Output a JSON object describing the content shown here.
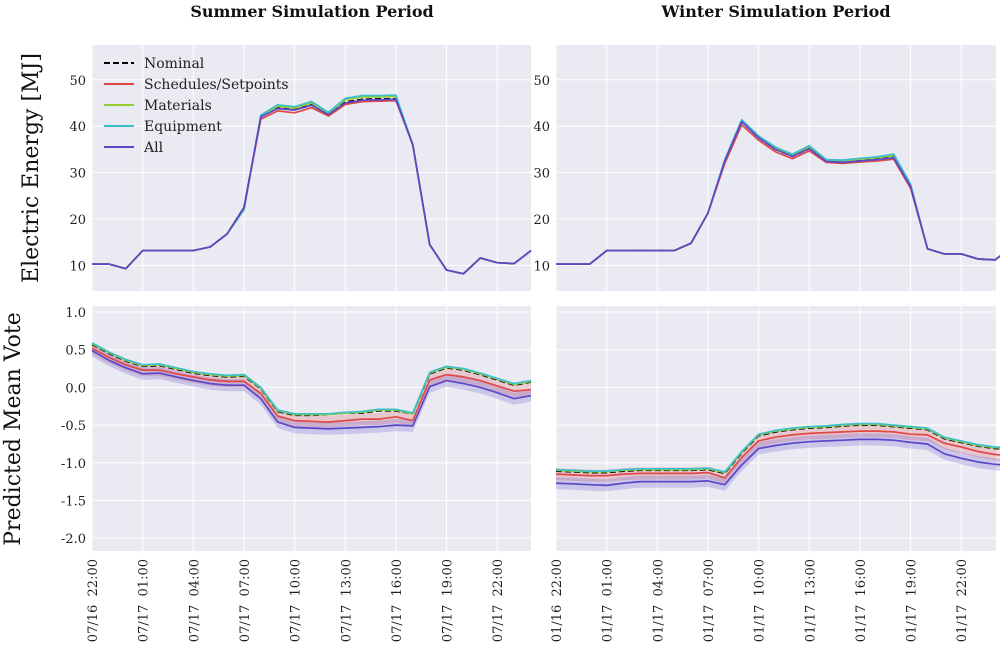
{
  "titles": [
    "Summer Simulation Period",
    "Winter Simulation Period"
  ],
  "ylabels": [
    "Electric Energy [MJ]",
    "Predicted Mean Vote"
  ],
  "legend": [
    {
      "name": "Nominal",
      "color": "#000000",
      "dash": true
    },
    {
      "name": "Schedules/Setpoints",
      "color": "#e04848",
      "dash": false
    },
    {
      "name": "Materials",
      "color": "#9acd32",
      "dash": false
    },
    {
      "name": "Equipment",
      "color": "#3bbfcc",
      "dash": false
    },
    {
      "name": "All",
      "color": "#5a48c8",
      "dash": false
    }
  ],
  "chart_data": [
    {
      "type": "line",
      "panel": "summer-energy",
      "title": "Summer Simulation Period",
      "ylabel": "Electric Energy [MJ]",
      "ylim": [
        4.5,
        57.5
      ],
      "yticks": [
        10,
        20,
        30,
        40,
        50
      ],
      "x": [
        0,
        1,
        2,
        3,
        4,
        5,
        6,
        7,
        8,
        9,
        10,
        11,
        12,
        13,
        14,
        15,
        16,
        17,
        18,
        19,
        20,
        21,
        22,
        23,
        24,
        25,
        26
      ],
      "series": [
        {
          "name": "Nominal",
          "values": [
            10.3,
            10.3,
            9.3,
            13.2,
            13.2,
            13.2,
            13.2,
            14.0,
            16.8,
            22.5,
            42.0,
            44.0,
            43.6,
            44.7,
            42.6,
            45.2,
            45.8,
            45.9,
            45.9,
            36,
            14.5,
            9.0,
            8.2,
            11.6,
            10.6,
            10.4,
            13.2
          ]
        },
        {
          "name": "Schedules/Setpoints",
          "values": [
            10.3,
            10.3,
            9.3,
            13.2,
            13.2,
            13.2,
            13.2,
            14.0,
            16.8,
            22.5,
            41.5,
            43.3,
            42.9,
            44.0,
            42.2,
            44.7,
            45.3,
            45.4,
            45.5,
            36,
            14.5,
            9.0,
            8.2,
            11.6,
            10.6,
            10.4,
            13.2
          ]
        },
        {
          "name": "Materials",
          "values": [
            10.3,
            10.3,
            9.3,
            13.2,
            13.2,
            13.2,
            13.2,
            14.0,
            16.8,
            22.0,
            42.2,
            44.3,
            43.9,
            45.0,
            42.8,
            45.7,
            46.3,
            46.3,
            46.4,
            36,
            14.5,
            9.0,
            8.2,
            11.6,
            10.6,
            10.4,
            13.2
          ]
        },
        {
          "name": "Equipment",
          "values": [
            10.3,
            10.3,
            9.3,
            13.2,
            13.2,
            13.2,
            13.2,
            14.0,
            16.8,
            22.0,
            42.4,
            44.6,
            44.2,
            45.3,
            43.0,
            46.0,
            46.6,
            46.6,
            46.7,
            36,
            14.5,
            9.0,
            8.2,
            11.6,
            10.6,
            10.4,
            13.2
          ]
        },
        {
          "name": "All",
          "values": [
            10.3,
            10.3,
            9.3,
            13.2,
            13.2,
            13.2,
            13.2,
            14.0,
            16.8,
            22.5,
            42.0,
            43.8,
            43.5,
            44.5,
            42.5,
            45.0,
            45.6,
            45.7,
            45.8,
            36,
            14.5,
            9.0,
            8.2,
            11.6,
            10.6,
            10.4,
            13.2
          ]
        }
      ]
    },
    {
      "type": "line",
      "panel": "winter-energy",
      "title": "Winter Simulation Period",
      "ylim": [
        4.5,
        57.5
      ],
      "yticks": [
        10,
        20,
        30,
        40,
        50
      ],
      "x": [
        0,
        1,
        2,
        3,
        4,
        5,
        6,
        7,
        8,
        9,
        10,
        11,
        12,
        13,
        14,
        15,
        16,
        17,
        18,
        19,
        20,
        21,
        22,
        23,
        24,
        25,
        26,
        27,
        28,
        29
      ],
      "series": [
        {
          "name": "Nominal",
          "values": [
            10.3,
            10.3,
            10.3,
            13.2,
            13.2,
            13.2,
            13.2,
            13.2,
            14.8,
            21.3,
            32.5,
            41.0,
            37.5,
            35.0,
            33.5,
            35.2,
            32.5,
            32.3,
            32.6,
            32.9,
            33.3,
            27.0,
            13.6,
            12.5,
            12.5,
            11.4,
            11.2,
            14.0,
            14.0,
            14.0
          ]
        },
        {
          "name": "Schedules/Setpoints",
          "values": [
            10.3,
            10.3,
            10.3,
            13.2,
            13.2,
            13.2,
            13.2,
            13.2,
            14.8,
            21.3,
            32.0,
            40.3,
            37.0,
            34.5,
            33.0,
            34.7,
            32.2,
            32.0,
            32.3,
            32.5,
            32.9,
            26.6,
            13.6,
            12.5,
            12.5,
            11.4,
            11.2,
            14.0,
            14.0,
            14.0
          ]
        },
        {
          "name": "Materials",
          "values": [
            10.3,
            10.3,
            10.3,
            13.2,
            13.2,
            13.2,
            13.2,
            13.2,
            14.8,
            21.3,
            32.7,
            41.2,
            37.7,
            35.3,
            33.8,
            35.5,
            32.7,
            32.5,
            32.9,
            33.2,
            33.7,
            27.3,
            13.6,
            12.5,
            12.5,
            11.4,
            11.2,
            14.0,
            14.0,
            14.0
          ]
        },
        {
          "name": "Equipment",
          "values": [
            10.3,
            10.3,
            10.3,
            13.2,
            13.2,
            13.2,
            13.2,
            13.2,
            14.8,
            21.3,
            32.8,
            41.4,
            37.9,
            35.5,
            34.0,
            35.8,
            32.8,
            32.7,
            33.1,
            33.4,
            34.0,
            27.5,
            13.6,
            12.5,
            12.5,
            11.4,
            11.2,
            14.0,
            14.0,
            14.0
          ]
        },
        {
          "name": "All",
          "values": [
            10.3,
            10.3,
            10.3,
            13.2,
            13.2,
            13.2,
            13.2,
            13.2,
            14.8,
            21.3,
            32.5,
            41.0,
            37.5,
            35.0,
            33.5,
            35.2,
            32.4,
            32.2,
            32.5,
            32.8,
            33.2,
            27.0,
            13.6,
            12.5,
            12.5,
            11.4,
            11.2,
            14.0,
            14.0,
            14.0
          ]
        }
      ]
    },
    {
      "type": "line",
      "panel": "summer-pmv",
      "ylabel": "Predicted Mean Vote",
      "ylim": [
        -2.17,
        1.08
      ],
      "yticks": [
        1.0,
        0.5,
        0.0,
        -0.5,
        -1.0,
        -1.5,
        -2.0
      ],
      "xticks": [
        "07/16  22:00",
        "07/17  01:00",
        "07/17  04:00",
        "07/17  07:00",
        "07/17  10:00",
        "07/17  13:00",
        "07/17  16:00",
        "07/17  19:00",
        "07/17  22:00"
      ],
      "xtick_positions": [
        0,
        3,
        6,
        9,
        12,
        15,
        18,
        21,
        24
      ],
      "x": [
        0,
        1,
        2,
        3,
        4,
        5,
        6,
        7,
        8,
        9,
        10,
        11,
        12,
        13,
        14,
        15,
        16,
        17,
        18,
        19,
        20,
        21,
        22,
        23,
        24,
        25,
        26
      ],
      "series": [
        {
          "name": "Nominal",
          "values": [
            0.57,
            0.45,
            0.35,
            0.28,
            0.29,
            0.24,
            0.19,
            0.16,
            0.14,
            0.15,
            -0.02,
            -0.32,
            -0.37,
            -0.37,
            -0.36,
            -0.34,
            -0.34,
            -0.31,
            -0.31,
            -0.35,
            0.18,
            0.26,
            0.23,
            0.17,
            0.1,
            0.03,
            0.07
          ]
        },
        {
          "name": "Schedules/Setpoints",
          "values": [
            0.52,
            0.4,
            0.3,
            0.23,
            0.23,
            0.18,
            0.14,
            0.1,
            0.08,
            0.08,
            -0.08,
            -0.38,
            -0.44,
            -0.45,
            -0.46,
            -0.44,
            -0.42,
            -0.42,
            -0.39,
            -0.44,
            0.1,
            0.17,
            0.14,
            0.09,
            0.02,
            -0.05,
            -0.03
          ]
        },
        {
          "name": "Materials",
          "values": [
            0.58,
            0.46,
            0.36,
            0.29,
            0.3,
            0.25,
            0.2,
            0.17,
            0.15,
            0.16,
            -0.01,
            -0.31,
            -0.36,
            -0.36,
            -0.36,
            -0.34,
            -0.33,
            -0.3,
            -0.3,
            -0.35,
            0.19,
            0.27,
            0.24,
            0.18,
            0.11,
            0.04,
            0.08
          ]
        },
        {
          "name": "Equipment",
          "values": [
            0.59,
            0.47,
            0.37,
            0.3,
            0.31,
            0.26,
            0.21,
            0.18,
            0.16,
            0.17,
            0.0,
            -0.3,
            -0.35,
            -0.35,
            -0.35,
            -0.33,
            -0.32,
            -0.29,
            -0.29,
            -0.34,
            0.2,
            0.28,
            0.25,
            0.19,
            0.12,
            0.05,
            0.09
          ]
        },
        {
          "name": "All",
          "values": [
            0.49,
            0.36,
            0.26,
            0.18,
            0.19,
            0.14,
            0.09,
            0.05,
            0.03,
            0.03,
            -0.15,
            -0.46,
            -0.53,
            -0.54,
            -0.55,
            -0.54,
            -0.53,
            -0.52,
            -0.5,
            -0.51,
            0.01,
            0.09,
            0.05,
            0.0,
            -0.07,
            -0.15,
            -0.11
          ]
        }
      ]
    },
    {
      "type": "line",
      "panel": "winter-pmv",
      "ylim": [
        -2.17,
        1.08
      ],
      "xticks": [
        "01/16  22:00",
        "01/17  01:00",
        "01/17  04:00",
        "01/17  07:00",
        "01/17  10:00",
        "01/17  13:00",
        "01/17  16:00",
        "01/17  19:00",
        "01/17  22:00"
      ],
      "xtick_positions": [
        0,
        3,
        6,
        9,
        12,
        15,
        18,
        21,
        24
      ],
      "x": [
        0,
        1,
        2,
        3,
        4,
        5,
        6,
        7,
        8,
        9,
        10,
        11,
        12,
        13,
        14,
        15,
        16,
        17,
        18,
        19,
        20,
        21,
        22,
        23,
        24,
        25,
        26,
        27,
        28,
        29
      ],
      "series": [
        {
          "name": "Nominal",
          "values": [
            -1.11,
            -1.12,
            -1.13,
            -1.13,
            -1.11,
            -1.1,
            -1.1,
            -1.1,
            -1.1,
            -1.09,
            -1.14,
            -0.87,
            -0.64,
            -0.59,
            -0.56,
            -0.54,
            -0.53,
            -0.51,
            -0.5,
            -0.5,
            -0.52,
            -0.54,
            -0.56,
            -0.68,
            -0.73,
            -0.78,
            -0.81,
            -0.82,
            -0.86,
            -0.9
          ]
        },
        {
          "name": "Schedules/Setpoints",
          "values": [
            -1.15,
            -1.16,
            -1.17,
            -1.17,
            -1.15,
            -1.14,
            -1.14,
            -1.14,
            -1.14,
            -1.13,
            -1.2,
            -0.93,
            -0.71,
            -0.66,
            -0.63,
            -0.61,
            -0.6,
            -0.59,
            -0.58,
            -0.58,
            -0.59,
            -0.62,
            -0.63,
            -0.74,
            -0.79,
            -0.85,
            -0.89,
            -0.91,
            -0.96,
            -1.0
          ]
        },
        {
          "name": "Materials",
          "values": [
            -1.1,
            -1.11,
            -1.12,
            -1.12,
            -1.1,
            -1.09,
            -1.09,
            -1.09,
            -1.09,
            -1.08,
            -1.13,
            -0.86,
            -0.63,
            -0.58,
            -0.55,
            -0.53,
            -0.52,
            -0.5,
            -0.49,
            -0.49,
            -0.51,
            -0.53,
            -0.55,
            -0.67,
            -0.72,
            -0.77,
            -0.8,
            -0.81,
            -0.85,
            -0.89
          ]
        },
        {
          "name": "Equipment",
          "values": [
            -1.09,
            -1.1,
            -1.11,
            -1.11,
            -1.09,
            -1.08,
            -1.08,
            -1.08,
            -1.08,
            -1.07,
            -1.12,
            -0.85,
            -0.62,
            -0.57,
            -0.54,
            -0.52,
            -0.51,
            -0.49,
            -0.48,
            -0.48,
            -0.5,
            -0.52,
            -0.54,
            -0.66,
            -0.71,
            -0.76,
            -0.79,
            -0.8,
            -0.84,
            -0.88
          ]
        },
        {
          "name": "All",
          "values": [
            -1.27,
            -1.28,
            -1.29,
            -1.3,
            -1.27,
            -1.25,
            -1.25,
            -1.25,
            -1.25,
            -1.24,
            -1.29,
            -1.03,
            -0.81,
            -0.77,
            -0.74,
            -0.72,
            -0.71,
            -0.7,
            -0.69,
            -0.69,
            -0.7,
            -0.73,
            -0.75,
            -0.88,
            -0.94,
            -0.99,
            -1.02,
            -1.04,
            -1.08,
            -1.12
          ]
        }
      ]
    }
  ]
}
